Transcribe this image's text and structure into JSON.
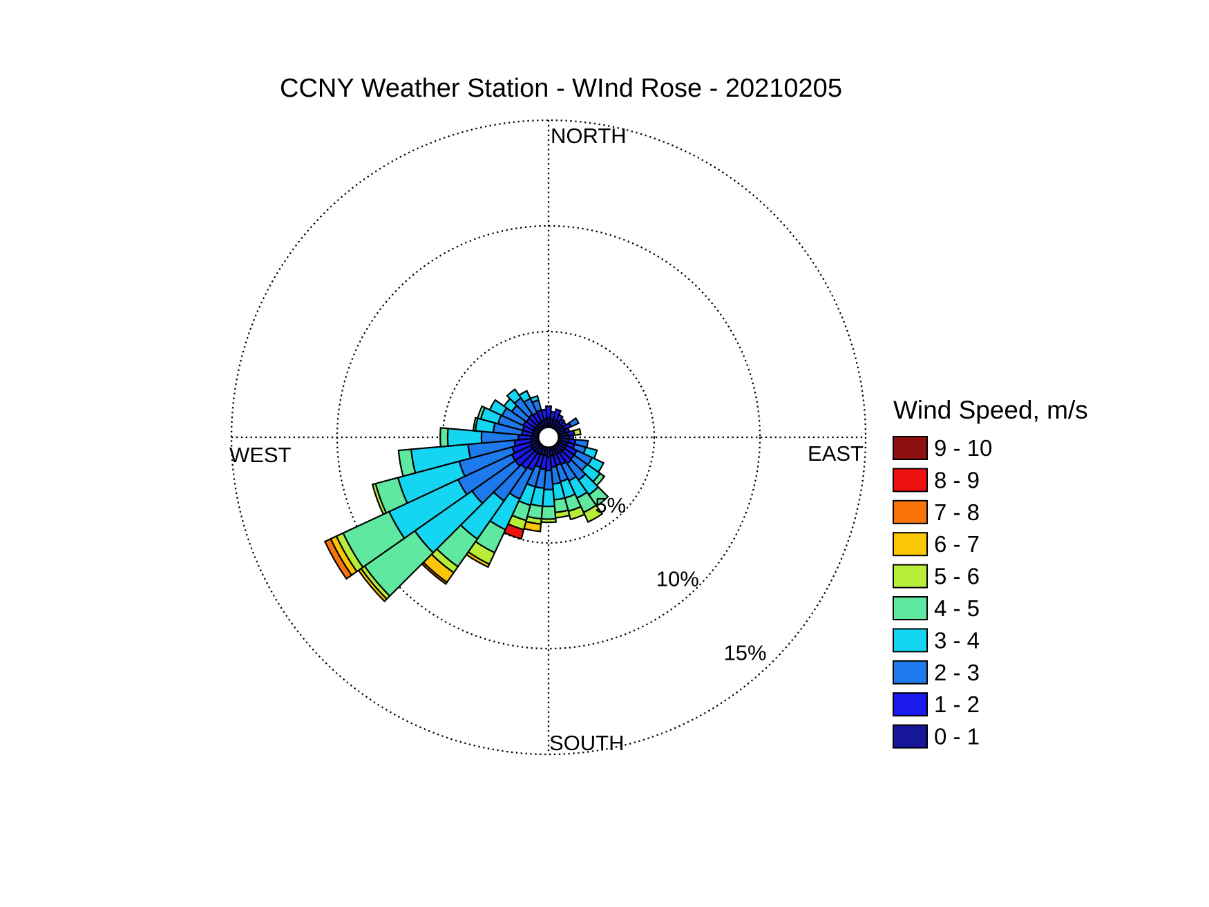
{
  "title": "CCNY Weather Station - WInd Rose - 20210205",
  "compass": {
    "north": "NORTH",
    "south": "SOUTH",
    "east": "EAST",
    "west": "WEST"
  },
  "legend": {
    "title": "Wind Speed, m/s",
    "items": [
      {
        "label": "9 - 10",
        "color": "#8D1111"
      },
      {
        "label": "8 - 9",
        "color": "#EE1111"
      },
      {
        "label": "7 - 8",
        "color": "#F9740A"
      },
      {
        "label": "6 - 7",
        "color": "#FBC608"
      },
      {
        "label": "5 - 6",
        "color": "#B8EE3A"
      },
      {
        "label": "4 - 5",
        "color": "#5FE8A0"
      },
      {
        "label": "3 - 4",
        "color": "#15D6F2"
      },
      {
        "label": "2 - 3",
        "color": "#1E79EC"
      },
      {
        "label": "1 - 2",
        "color": "#1A1AEF"
      },
      {
        "label": "0 - 1",
        "color": "#161699"
      }
    ]
  },
  "chart_data": {
    "type": "windrose (stacked polar bar)",
    "title": "CCNY Weather Station - WInd Rose - 20210205",
    "units": "percent frequency of wind direction, stacked by wind speed bin (m/s)",
    "legend_position": "right",
    "grid": "dotted polar rings and N-S / E-W cross lines",
    "ring_labels": [
      "5%",
      "10%",
      "15%"
    ],
    "ring_percents": [
      5,
      10,
      15
    ],
    "direction_bin_width_deg": 10,
    "directions_deg": [
      0,
      10,
      20,
      30,
      40,
      50,
      60,
      70,
      80,
      90,
      100,
      110,
      120,
      130,
      140,
      150,
      160,
      170,
      180,
      190,
      200,
      210,
      220,
      230,
      240,
      250,
      260,
      270,
      280,
      290,
      300,
      310,
      320,
      330,
      340,
      350
    ],
    "speed_bins": [
      "0 - 1",
      "1 - 2",
      "2 - 3",
      "3 - 4",
      "4 - 5",
      "5 - 6",
      "6 - 7",
      "7 - 8",
      "8 - 9",
      "9 - 10"
    ],
    "speed_bin_colors": [
      "#161699",
      "#1A1AEF",
      "#1E79EC",
      "#15D6F2",
      "#5FE8A0",
      "#B8EE3A",
      "#FBC608",
      "#F9740A",
      "#EE1111",
      "#8D1111"
    ],
    "frequencies_pct": [
      [
        0.45,
        0.55,
        0,
        0,
        0,
        0,
        0,
        0,
        0,
        0
      ],
      [
        0.4,
        0.35,
        0,
        0,
        0,
        0,
        0,
        0,
        0,
        0
      ],
      [
        0.4,
        0.5,
        0,
        0,
        0,
        0,
        0,
        0,
        0,
        0
      ],
      [
        0.4,
        0.3,
        0,
        0,
        0,
        0,
        0,
        0,
        0,
        0
      ],
      [
        0.35,
        0.25,
        0,
        0,
        0,
        0,
        0,
        0,
        0,
        0
      ],
      [
        0.35,
        0.2,
        0,
        0,
        0,
        0,
        0,
        0,
        0,
        0
      ],
      [
        0.4,
        0.3,
        0.4,
        0,
        0,
        0,
        0,
        0,
        0,
        0
      ],
      [
        0.35,
        0.2,
        0,
        0,
        0,
        0,
        0,
        0,
        0,
        0
      ],
      [
        0.45,
        0.3,
        0,
        0,
        0,
        0.3,
        0,
        0,
        0,
        0
      ],
      [
        0.5,
        0.2,
        0,
        0,
        0,
        0,
        0,
        0,
        0,
        0
      ],
      [
        0.5,
        0.3,
        0.6,
        0,
        0,
        0,
        0,
        0,
        0,
        0
      ],
      [
        0.45,
        0.35,
        0.55,
        0.55,
        0,
        0,
        0,
        0,
        0,
        0
      ],
      [
        0.45,
        0.55,
        0.8,
        0.6,
        0,
        0,
        0,
        0,
        0,
        0
      ],
      [
        0.45,
        0.55,
        0.75,
        0.75,
        0.25,
        0,
        0,
        0,
        0,
        0
      ],
      [
        0.45,
        0.6,
        0.95,
        0.85,
        0.65,
        0,
        0,
        0,
        0,
        0
      ],
      [
        0.4,
        0.55,
        0.85,
        0.9,
        0.75,
        0.5,
        0,
        0,
        0,
        0
      ],
      [
        0.4,
        0.5,
        0.8,
        0.8,
        0.65,
        0.4,
        0,
        0,
        0,
        0
      ],
      [
        0.4,
        0.55,
        0.8,
        0.75,
        0.6,
        0.25,
        0,
        0,
        0,
        0
      ],
      [
        0.45,
        0.65,
        0.9,
        0.8,
        0.6,
        0.15,
        0,
        0,
        0,
        0
      ],
      [
        0.4,
        0.65,
        0.9,
        0.85,
        0.6,
        0.25,
        0.35,
        0,
        0,
        0
      ],
      [
        0.4,
        0.6,
        0.95,
        0.9,
        0.75,
        0.45,
        0,
        0,
        0.45,
        0
      ],
      [
        0.45,
        0.8,
        1.5,
        1.6,
        1.2,
        0.6,
        0.15,
        0,
        0,
        0
      ],
      [
        0.45,
        0.9,
        1.85,
        2.2,
        1.6,
        0.35,
        0.55,
        0.1,
        0,
        0
      ],
      [
        0.45,
        1.0,
        2.5,
        3.3,
        2.9,
        0.2,
        0.15,
        0,
        0,
        0
      ],
      [
        0.45,
        1.0,
        2.8,
        3.6,
        2.4,
        0.35,
        0.3,
        0.3,
        0,
        0
      ],
      [
        0.4,
        0.9,
        2.6,
        3.0,
        1.1,
        0.15,
        0,
        0,
        0,
        0
      ],
      [
        0.35,
        0.8,
        2.2,
        2.7,
        0.6,
        0,
        0,
        0,
        0,
        0
      ],
      [
        0.35,
        0.6,
        1.75,
        1.6,
        0.35,
        0,
        0,
        0,
        0,
        0
      ],
      [
        0.3,
        0.5,
        1.35,
        0.85,
        0.1,
        0,
        0,
        0,
        0,
        0
      ],
      [
        0.3,
        0.5,
        1.2,
        0.85,
        0.15,
        0,
        0,
        0,
        0,
        0
      ],
      [
        0.3,
        0.55,
        1.1,
        0.65,
        0,
        0,
        0,
        0,
        0,
        0
      ],
      [
        0.3,
        0.5,
        0.85,
        0.45,
        0,
        0,
        0,
        0,
        0,
        0
      ],
      [
        0.3,
        0.55,
        0.95,
        0.5,
        0,
        0,
        0,
        0,
        0,
        0
      ],
      [
        0.3,
        0.5,
        0.75,
        0.4,
        0,
        0,
        0,
        0,
        0,
        0
      ],
      [
        0.35,
        0.5,
        0.5,
        0.2,
        0,
        0,
        0,
        0,
        0,
        0
      ],
      [
        0.4,
        0.45,
        0,
        0,
        0,
        0,
        0,
        0,
        0,
        0
      ]
    ]
  }
}
